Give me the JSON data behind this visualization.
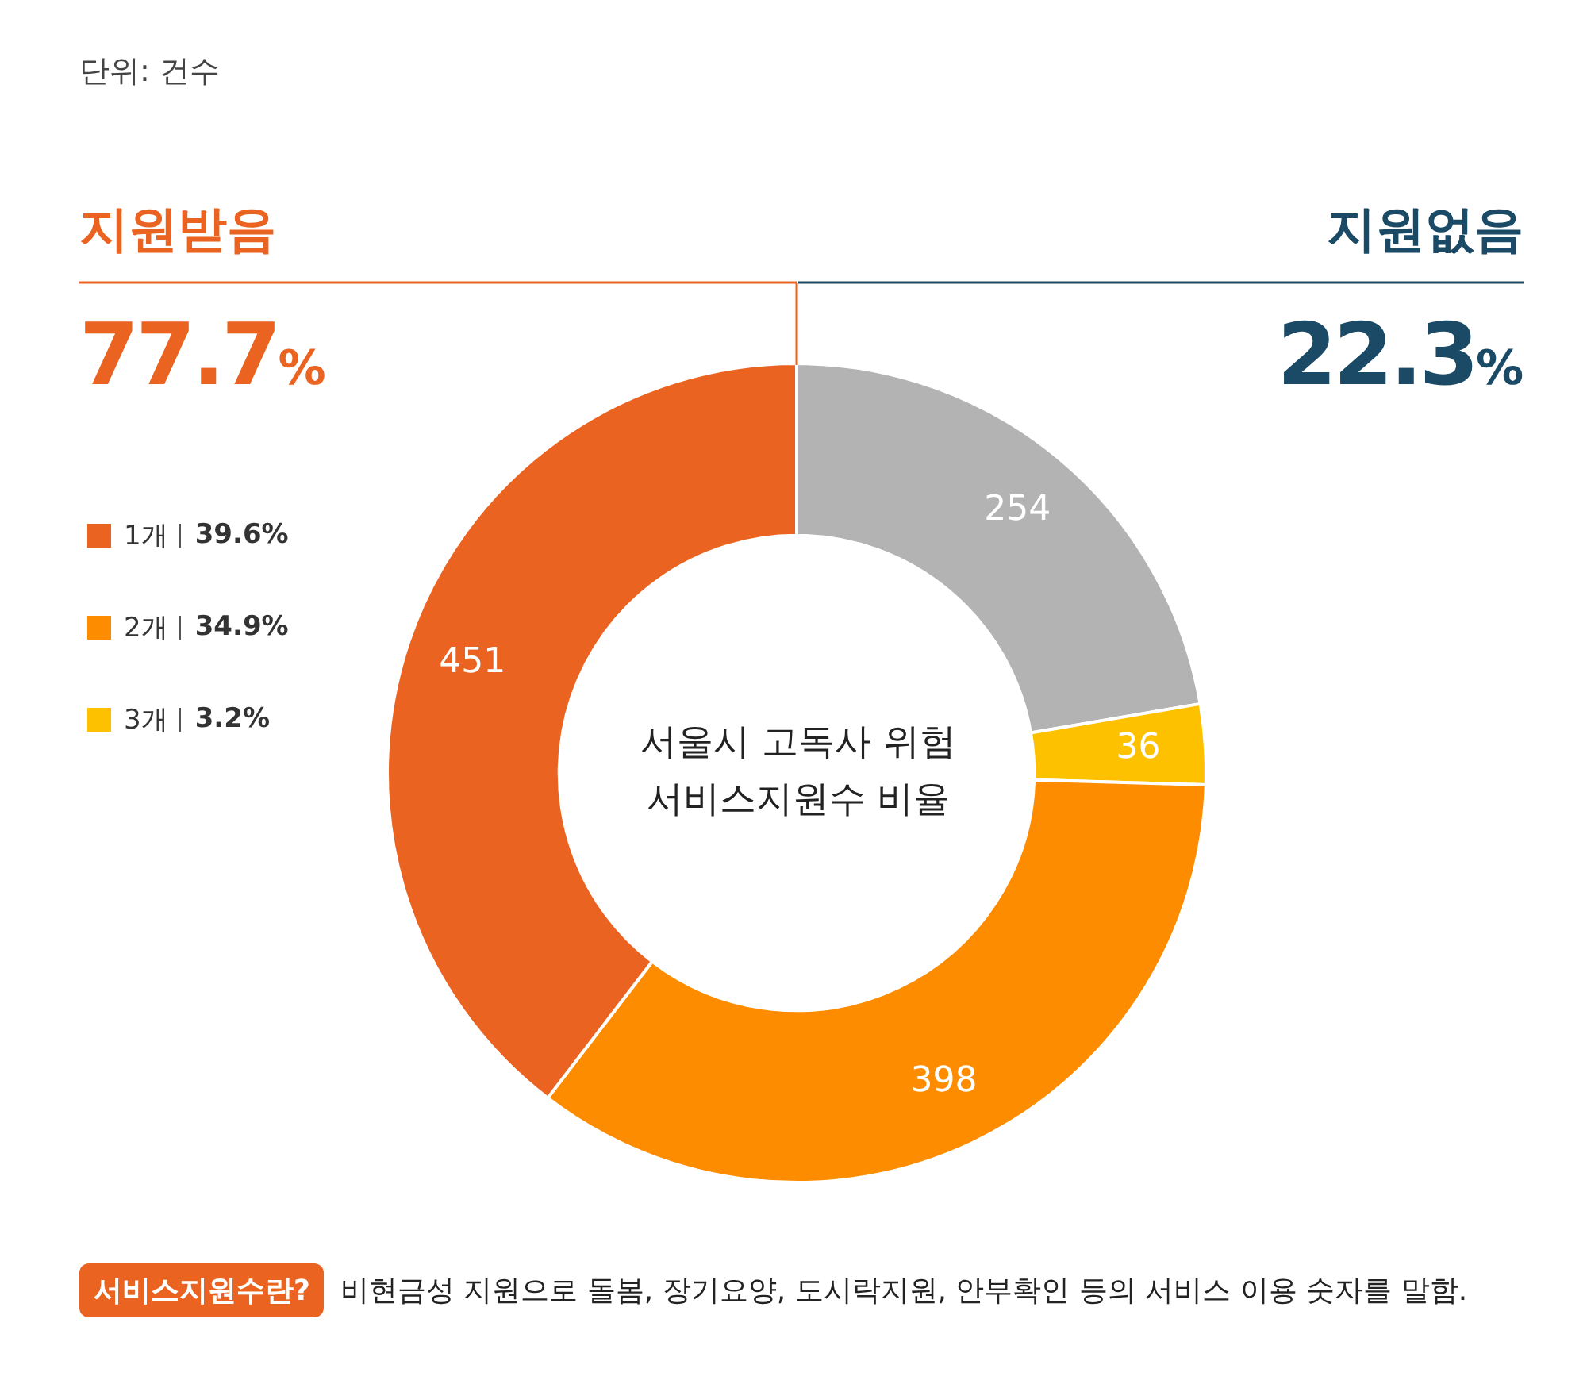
{
  "chart_data": {
    "type": "donut",
    "title": "서울시 고독사 위험\n서비스지원수 비율",
    "subtitle": "단위: 건수",
    "categories": [
      null,
      "3개",
      "2개",
      "1개"
    ],
    "values": [
      254,
      36,
      398,
      451
    ],
    "colors": [
      "#b3b3b3",
      "#fdc100",
      "#fd8c00",
      "#eb6320"
    ],
    "data_labels": true,
    "legend": "left",
    "annotations": [
      "지원받음",
      "77.7%",
      "지원없음",
      "22.3%",
      "39.6%",
      "34.9%",
      "3.2%",
      "서비스지원수란?",
      "비현금성 지원으로 돌봄, 장기요양, 도시락지원, 안부확인 등의 서비스 이용 숫자를 말함."
    ]
  }
}
